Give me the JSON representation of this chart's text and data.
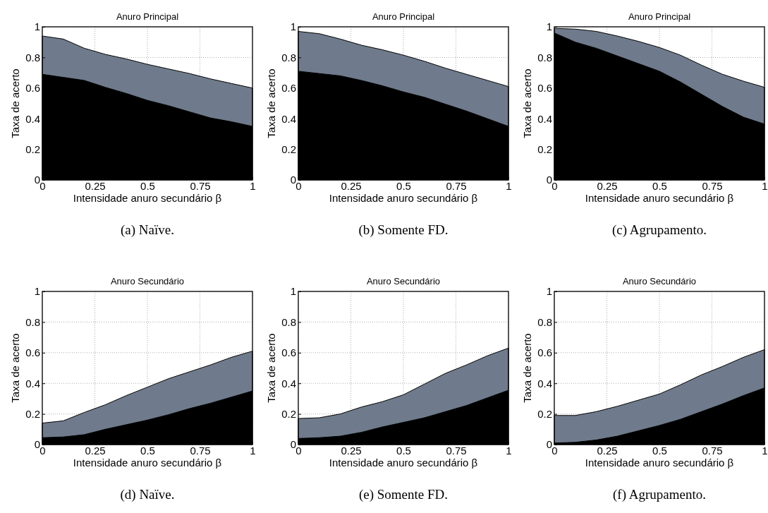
{
  "chart_data": [
    {
      "type": "area",
      "stacked": true,
      "title": "Anuro Principal",
      "xlabel": "Intensidade anuro secundário β",
      "ylabel": "Taxa de acerto",
      "annotations": [
        "(a) Naïve."
      ],
      "x": [
        0,
        0.1,
        0.2,
        0.3,
        0.4,
        0.5,
        0.6,
        0.7,
        0.8,
        0.9,
        1
      ],
      "xlim": [
        0,
        1
      ],
      "ylim": [
        0,
        1
      ],
      "xticks": [
        0,
        0.25,
        0.5,
        0.75,
        1
      ],
      "yticks": [
        0,
        0.2,
        0.4,
        0.6,
        0.8,
        1
      ],
      "grid": true,
      "series": [
        {
          "color": "#000000",
          "values": [
            0.69,
            0.67,
            0.65,
            0.605,
            0.565,
            0.52,
            0.485,
            0.445,
            0.405,
            0.38,
            0.35
          ]
        },
        {
          "color": "#6f7b8c",
          "values": [
            0.25,
            0.25,
            0.21,
            0.215,
            0.225,
            0.235,
            0.24,
            0.25,
            0.255,
            0.25,
            0.25
          ]
        }
      ]
    },
    {
      "type": "area",
      "stacked": true,
      "title": "Anuro Principal",
      "xlabel": "Intensidade anuro secundário β",
      "ylabel": "Taxa de acerto",
      "annotations": [
        "(b) Somente FD."
      ],
      "x": [
        0,
        0.1,
        0.2,
        0.3,
        0.4,
        0.5,
        0.6,
        0.7,
        0.8,
        0.9,
        1
      ],
      "xlim": [
        0,
        1
      ],
      "ylim": [
        0,
        1
      ],
      "xticks": [
        0,
        0.25,
        0.5,
        0.75,
        1
      ],
      "yticks": [
        0,
        0.2,
        0.4,
        0.6,
        0.8,
        1
      ],
      "grid": true,
      "series": [
        {
          "color": "#000000",
          "values": [
            0.71,
            0.695,
            0.68,
            0.65,
            0.615,
            0.575,
            0.54,
            0.495,
            0.45,
            0.4,
            0.35
          ]
        },
        {
          "color": "#6f7b8c",
          "values": [
            0.26,
            0.26,
            0.24,
            0.23,
            0.235,
            0.24,
            0.235,
            0.235,
            0.24,
            0.25,
            0.26
          ]
        }
      ]
    },
    {
      "type": "area",
      "stacked": true,
      "title": "Anuro Principal",
      "xlabel": "Intensidade anuro secundário β",
      "ylabel": "Taxa de acerto",
      "annotations": [
        "(c) Agrupamento."
      ],
      "x": [
        0,
        0.1,
        0.2,
        0.3,
        0.4,
        0.5,
        0.6,
        0.7,
        0.8,
        0.9,
        1
      ],
      "xlim": [
        0,
        1
      ],
      "ylim": [
        0,
        1
      ],
      "xticks": [
        0,
        0.25,
        0.5,
        0.75,
        1
      ],
      "yticks": [
        0,
        0.2,
        0.4,
        0.6,
        0.8,
        1
      ],
      "grid": true,
      "series": [
        {
          "color": "#000000",
          "values": [
            0.96,
            0.9,
            0.86,
            0.81,
            0.76,
            0.71,
            0.64,
            0.56,
            0.48,
            0.41,
            0.365
          ]
        },
        {
          "color": "#6f7b8c",
          "values": [
            0.03,
            0.085,
            0.11,
            0.13,
            0.145,
            0.155,
            0.175,
            0.19,
            0.21,
            0.235,
            0.24
          ]
        }
      ]
    },
    {
      "type": "area",
      "stacked": true,
      "title": "Anuro Secundário",
      "xlabel": "Intensidade anuro secundário β",
      "ylabel": "Taxa de acerto",
      "annotations": [
        "(d) Naïve."
      ],
      "x": [
        0,
        0.1,
        0.2,
        0.3,
        0.4,
        0.5,
        0.6,
        0.7,
        0.8,
        0.9,
        1
      ],
      "xlim": [
        0,
        1
      ],
      "ylim": [
        0,
        1
      ],
      "xticks": [
        0,
        0.25,
        0.5,
        0.75,
        1
      ],
      "yticks": [
        0,
        0.2,
        0.4,
        0.6,
        0.8,
        1
      ],
      "grid": true,
      "series": [
        {
          "color": "#000000",
          "values": [
            0.045,
            0.05,
            0.065,
            0.1,
            0.13,
            0.16,
            0.195,
            0.235,
            0.27,
            0.31,
            0.35
          ]
        },
        {
          "color": "#6f7b8c",
          "values": [
            0.095,
            0.105,
            0.145,
            0.16,
            0.19,
            0.215,
            0.235,
            0.24,
            0.25,
            0.26,
            0.26
          ]
        }
      ]
    },
    {
      "type": "area",
      "stacked": true,
      "title": "Anuro Secundário",
      "xlabel": "Intensidade anuro secundário β",
      "ylabel": "Taxa de acerto",
      "annotations": [
        "(e) Somente FD."
      ],
      "x": [
        0,
        0.1,
        0.2,
        0.3,
        0.4,
        0.5,
        0.6,
        0.7,
        0.8,
        0.9,
        1
      ],
      "xlim": [
        0,
        1
      ],
      "ylim": [
        0,
        1
      ],
      "xticks": [
        0,
        0.25,
        0.5,
        0.75,
        1
      ],
      "yticks": [
        0,
        0.2,
        0.4,
        0.6,
        0.8,
        1
      ],
      "grid": true,
      "series": [
        {
          "color": "#000000",
          "values": [
            0.04,
            0.045,
            0.055,
            0.08,
            0.115,
            0.145,
            0.175,
            0.215,
            0.255,
            0.305,
            0.355
          ]
        },
        {
          "color": "#6f7b8c",
          "values": [
            0.13,
            0.13,
            0.145,
            0.165,
            0.165,
            0.18,
            0.22,
            0.25,
            0.265,
            0.275,
            0.275
          ]
        }
      ]
    },
    {
      "type": "area",
      "stacked": true,
      "title": "Anuro Secundário",
      "xlabel": "Intensidade anuro secundário β",
      "ylabel": "Taxa de acerto",
      "annotations": [
        "(f) Agrupamento."
      ],
      "x": [
        0,
        0.1,
        0.2,
        0.3,
        0.4,
        0.5,
        0.6,
        0.7,
        0.8,
        0.9,
        1
      ],
      "xlim": [
        0,
        1
      ],
      "ylim": [
        0,
        1
      ],
      "xticks": [
        0,
        0.25,
        0.5,
        0.75,
        1
      ],
      "yticks": [
        0,
        0.2,
        0.4,
        0.6,
        0.8,
        1
      ],
      "grid": true,
      "series": [
        {
          "color": "#000000",
          "values": [
            0.01,
            0.015,
            0.03,
            0.055,
            0.09,
            0.125,
            0.165,
            0.215,
            0.265,
            0.32,
            0.37
          ]
        },
        {
          "color": "#6f7b8c",
          "values": [
            0.18,
            0.175,
            0.185,
            0.195,
            0.2,
            0.205,
            0.225,
            0.24,
            0.245,
            0.25,
            0.25
          ]
        }
      ]
    }
  ]
}
